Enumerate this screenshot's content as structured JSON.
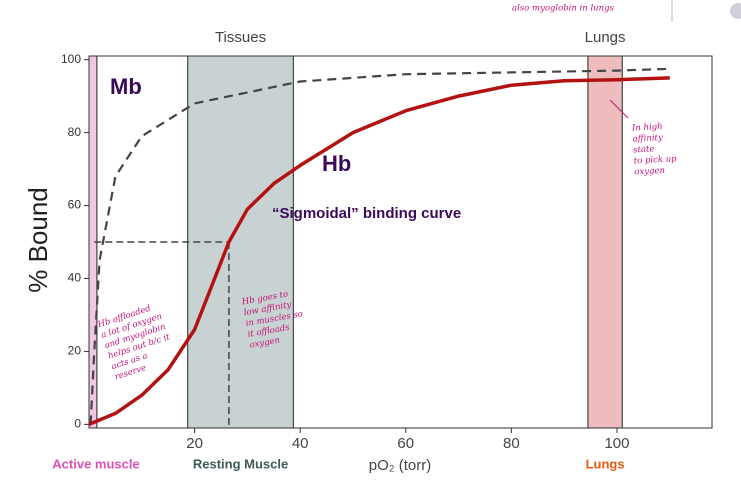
{
  "chart_data": {
    "type": "line",
    "y_label": "% Bound",
    "x_label": "pO₂ (torr)",
    "xlim": [
      0,
      118
    ],
    "ylim": [
      -1,
      101
    ],
    "xticks": [
      20,
      40,
      60,
      80,
      100
    ],
    "yticks": [
      0,
      20,
      40,
      60,
      80,
      100
    ],
    "series": [
      {
        "name": "Mb",
        "color": "#444444",
        "dashed": true,
        "x": [
          0.3,
          1,
          2,
          5,
          10,
          20,
          40,
          60,
          80,
          100,
          110
        ],
        "values": [
          0,
          20,
          45,
          68,
          79,
          88,
          94,
          96,
          96.5,
          97,
          97.5
        ]
      },
      {
        "name": "Hb",
        "color": "#b31212",
        "dashed": false,
        "x": [
          0,
          5,
          10,
          15,
          20,
          23,
          26.5,
          30,
          35,
          40,
          50,
          60,
          70,
          80,
          90,
          100,
          110
        ],
        "values": [
          0,
          3,
          8,
          15,
          26,
          37,
          50,
          59,
          66,
          71,
          80,
          86,
          90,
          93,
          94.2,
          94.5,
          95
        ]
      }
    ],
    "p50": {
      "x": 26.5,
      "y": 50
    },
    "bands": [
      {
        "name": "Active muscle",
        "range": [
          0,
          1.5
        ],
        "color": "#f1c8e3",
        "label_color": "#e04fb4"
      },
      {
        "name": "Resting Muscle",
        "region": "Tissues",
        "range": [
          18.7,
          38.7
        ],
        "color": "#c9d2d2",
        "label_color": "#3c5a5a"
      },
      {
        "name": "Lungs",
        "region": "Lungs",
        "range": [
          94.5,
          101
        ],
        "color": "#eebcbc",
        "label_color": "#e85a10"
      }
    ],
    "curve_label": "“Sigmoidal” binding curve",
    "notes": {
      "top": [
        "also myoglobin in lungs"
      ],
      "lungs": [
        "In high",
        "affinity",
        "state",
        "to pick up",
        "oxygen"
      ],
      "active": [
        "Hb offloaded",
        "a lot of oxygen",
        "and myoglobin",
        "helps out b/c it",
        "acts as a",
        "reserve"
      ],
      "tissues": [
        "Hb goes to",
        "low affinity",
        "in muscles so",
        "it offloads",
        "oxygen"
      ]
    }
  }
}
